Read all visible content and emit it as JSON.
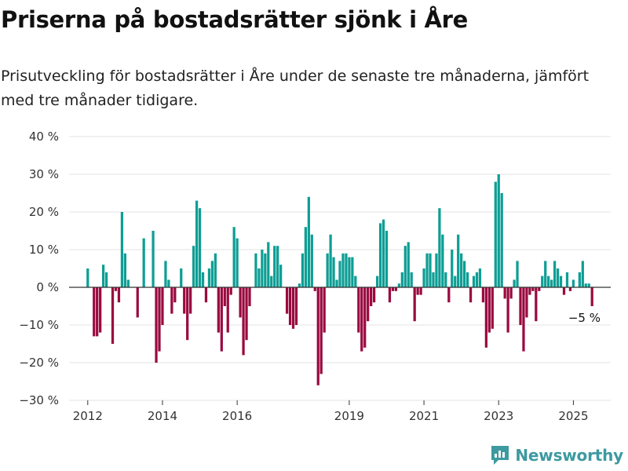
{
  "header": {
    "title": "Priserna på bostadsrätter sjönk i Åre",
    "subtitle": "Prisutveckling för bostadsrätter i Åre under de senaste tre månaderna, jämfört med tre månader tidigare."
  },
  "brand": {
    "name": "Newsworthy",
    "logo_icon": "newsworthy-logo-icon",
    "color": "#3d9aa0"
  },
  "colors": {
    "positive": "#0e9e94",
    "negative": "#9a0a3f",
    "grid": "#e3e3e3",
    "zero_line": "#333333"
  },
  "chart_data": {
    "type": "bar",
    "title": "Priserna på bostadsrätter sjönk i Åre",
    "xlabel": "",
    "ylabel": "",
    "unit": "%",
    "ylim": [
      -30,
      40
    ],
    "yticks": [
      40,
      30,
      20,
      10,
      0,
      -10,
      -20,
      -30
    ],
    "ytick_labels": [
      "40 %",
      "30 %",
      "20 %",
      "10 %",
      "0 %",
      "−10 %",
      "−20 %",
      "−30 %"
    ],
    "x_ticks": [
      {
        "label": "2012",
        "x": 2012.0
      },
      {
        "label": "2014",
        "x": 2014.0
      },
      {
        "label": "2016",
        "x": 2016.0
      },
      {
        "label": "2019",
        "x": 2019.0
      },
      {
        "label": "2021",
        "x": 2021.0
      },
      {
        "label": "2023",
        "x": 2023.0
      },
      {
        "label": "2025",
        "x": 2025.0
      }
    ],
    "x_range": [
      2011.5,
      2026.0
    ],
    "grid": true,
    "annotation": {
      "text": "−5 %",
      "value": -5
    },
    "start": "2012-01",
    "frequency": "monthly",
    "values": [
      5,
      0,
      -13,
      -13,
      -12,
      6,
      4,
      0,
      -15,
      -1,
      -4,
      20,
      9,
      2,
      0,
      0,
      -8,
      0,
      13,
      0,
      0,
      15,
      -20,
      -17,
      -10,
      7,
      2,
      -7,
      -4,
      0,
      5,
      -7,
      -14,
      -7,
      11,
      23,
      21,
      4,
      -4,
      5,
      7,
      9,
      -12,
      -17,
      -5,
      -12,
      -2,
      16,
      13,
      -8,
      -18,
      -14,
      -5,
      0,
      9,
      5,
      10,
      9,
      12,
      3,
      11,
      11,
      6,
      0,
      -7,
      -10,
      -11,
      -10,
      1,
      9,
      16,
      24,
      14,
      -1,
      -26,
      -23,
      -12,
      9,
      14,
      8,
      2,
      7,
      9,
      9,
      8,
      8,
      3,
      -12,
      -17,
      -16,
      -9,
      -5,
      -4,
      3,
      17,
      18,
      15,
      -4,
      -1,
      -1,
      1,
      4,
      11,
      12,
      4,
      -9,
      -2,
      -2,
      5,
      9,
      9,
      4,
      9,
      21,
      14,
      4,
      -4,
      10,
      3,
      14,
      9,
      7,
      4,
      -4,
      3,
      4,
      5,
      -4,
      -16,
      -12,
      -11,
      28,
      30,
      25,
      -3,
      -12,
      -3,
      2,
      7,
      -10,
      -17,
      -8,
      -2,
      -1,
      -9,
      -1,
      3,
      7,
      3,
      2,
      7,
      5,
      3,
      -2,
      4,
      -1,
      2,
      0,
      4,
      7,
      1,
      1,
      -5
    ]
  }
}
